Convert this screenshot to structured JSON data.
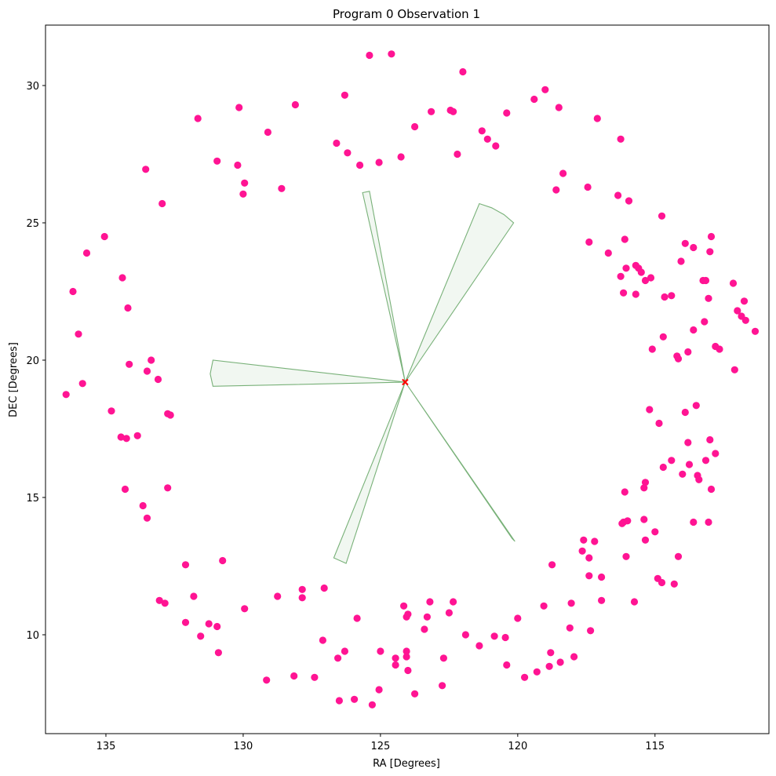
{
  "chart_data": {
    "type": "scatter",
    "title": "Program 0 Observation 1",
    "xlabel": "RA [Degrees]",
    "ylabel": "DEC [Degrees]",
    "xlim": [
      137.2,
      110.85
    ],
    "ylim": [
      6.4,
      32.2
    ],
    "x_ticks": [
      135,
      130,
      125,
      120,
      115
    ],
    "y_ticks": [
      10,
      15,
      20,
      25,
      30
    ],
    "grid": false,
    "colors": {
      "points": "#ff1493",
      "wedges": "#8fbc8f",
      "wedge_edge": "#6aa86a",
      "center_marker": "#ff0000"
    },
    "center": [
      124.1,
      19.2
    ],
    "wedges": [
      [
        [
          124.1,
          19.2
        ],
        [
          125.65,
          26.1
        ],
        [
          125.4,
          26.15
        ],
        [
          124.1,
          19.2
        ]
      ],
      [
        [
          124.1,
          19.2
        ],
        [
          121.4,
          25.7
        ],
        [
          120.95,
          25.55
        ],
        [
          120.5,
          25.3
        ],
        [
          120.15,
          25.0
        ],
        [
          124.1,
          19.2
        ]
      ],
      [
        [
          124.1,
          19.2
        ],
        [
          131.1,
          20.0
        ],
        [
          131.2,
          19.5
        ],
        [
          131.1,
          19.05
        ],
        [
          124.1,
          19.2
        ]
      ],
      [
        [
          124.1,
          19.2
        ],
        [
          126.7,
          12.8
        ],
        [
          126.25,
          12.6
        ],
        [
          124.1,
          19.2
        ]
      ],
      [
        [
          124.1,
          19.2
        ],
        [
          120.2,
          13.5
        ],
        [
          120.1,
          13.4
        ],
        [
          124.1,
          19.2
        ]
      ]
    ],
    "series": [
      {
        "points": [
          [
            125.4,
            31.1
          ],
          [
            124.6,
            31.15
          ],
          [
            122.0,
            30.5
          ],
          [
            119.0,
            29.85
          ],
          [
            119.4,
            29.5
          ],
          [
            118.5,
            29.2
          ],
          [
            117.1,
            28.8
          ],
          [
            120.4,
            29.0
          ],
          [
            123.15,
            29.05
          ],
          [
            122.45,
            29.1
          ],
          [
            122.35,
            29.05
          ],
          [
            123.75,
            28.5
          ],
          [
            121.3,
            28.35
          ],
          [
            121.1,
            28.05
          ],
          [
            120.8,
            27.8
          ],
          [
            116.25,
            28.05
          ],
          [
            126.6,
            27.9
          ],
          [
            126.2,
            27.55
          ],
          [
            125.05,
            27.2
          ],
          [
            124.25,
            27.4
          ],
          [
            125.75,
            27.1
          ],
          [
            122.2,
            27.5
          ],
          [
            118.35,
            26.8
          ],
          [
            118.6,
            26.2
          ],
          [
            117.45,
            26.3
          ],
          [
            116.35,
            26.0
          ],
          [
            115.95,
            25.8
          ],
          [
            114.75,
            25.25
          ],
          [
            112.95,
            24.5
          ],
          [
            113.6,
            24.1
          ],
          [
            113.9,
            24.25
          ],
          [
            116.1,
            24.4
          ],
          [
            117.4,
            24.3
          ],
          [
            116.7,
            23.9
          ],
          [
            114.05,
            23.6
          ],
          [
            113.0,
            23.95
          ],
          [
            116.05,
            23.35
          ],
          [
            115.6,
            23.35
          ],
          [
            115.7,
            23.45
          ],
          [
            115.5,
            23.2
          ],
          [
            116.25,
            23.05
          ],
          [
            115.15,
            23.0
          ],
          [
            115.35,
            22.9
          ],
          [
            113.25,
            22.9
          ],
          [
            113.15,
            22.9
          ],
          [
            112.15,
            22.8
          ],
          [
            116.15,
            22.45
          ],
          [
            115.7,
            22.4
          ],
          [
            114.65,
            22.3
          ],
          [
            114.4,
            22.35
          ],
          [
            113.05,
            22.25
          ],
          [
            111.75,
            22.15
          ],
          [
            112.0,
            21.8
          ],
          [
            111.85,
            21.6
          ],
          [
            111.7,
            21.45
          ],
          [
            113.2,
            21.4
          ],
          [
            113.6,
            21.1
          ],
          [
            114.7,
            20.85
          ],
          [
            111.35,
            21.05
          ],
          [
            115.1,
            20.4
          ],
          [
            112.8,
            20.5
          ],
          [
            112.65,
            20.4
          ],
          [
            114.2,
            20.15
          ],
          [
            114.15,
            20.05
          ],
          [
            113.8,
            20.3
          ],
          [
            112.1,
            19.65
          ],
          [
            113.5,
            18.35
          ],
          [
            113.9,
            18.1
          ],
          [
            115.2,
            18.2
          ],
          [
            114.85,
            17.7
          ],
          [
            113.0,
            17.1
          ],
          [
            113.8,
            17.0
          ],
          [
            112.8,
            16.6
          ],
          [
            114.4,
            16.35
          ],
          [
            113.75,
            16.2
          ],
          [
            113.15,
            16.35
          ],
          [
            114.7,
            16.1
          ],
          [
            113.45,
            15.8
          ],
          [
            114.0,
            15.85
          ],
          [
            113.4,
            15.65
          ],
          [
            115.35,
            15.55
          ],
          [
            115.4,
            15.35
          ],
          [
            112.95,
            15.3
          ],
          [
            116.1,
            15.2
          ],
          [
            115.4,
            14.2
          ],
          [
            116.0,
            14.15
          ],
          [
            116.15,
            14.1
          ],
          [
            116.2,
            14.05
          ],
          [
            113.6,
            14.1
          ],
          [
            113.05,
            14.1
          ],
          [
            115.0,
            13.75
          ],
          [
            115.35,
            13.45
          ],
          [
            117.6,
            13.45
          ],
          [
            117.2,
            13.4
          ],
          [
            117.65,
            13.05
          ],
          [
            117.4,
            12.8
          ],
          [
            116.05,
            12.85
          ],
          [
            114.15,
            12.85
          ],
          [
            118.75,
            12.55
          ],
          [
            114.9,
            12.05
          ],
          [
            114.75,
            11.9
          ],
          [
            114.3,
            11.85
          ],
          [
            117.4,
            12.15
          ],
          [
            116.95,
            12.1
          ],
          [
            116.95,
            11.25
          ],
          [
            115.75,
            11.2
          ],
          [
            118.05,
            11.15
          ],
          [
            119.05,
            11.05
          ],
          [
            122.35,
            11.2
          ],
          [
            123.2,
            11.2
          ],
          [
            122.5,
            10.8
          ],
          [
            124.0,
            10.75
          ],
          [
            124.05,
            10.65
          ],
          [
            123.3,
            10.65
          ],
          [
            124.15,
            11.05
          ],
          [
            121.9,
            10.0
          ],
          [
            121.4,
            9.6
          ],
          [
            123.4,
            10.2
          ],
          [
            120.0,
            10.6
          ],
          [
            118.1,
            10.25
          ],
          [
            120.85,
            9.95
          ],
          [
            120.45,
            9.9
          ],
          [
            117.35,
            10.15
          ],
          [
            118.8,
            9.35
          ],
          [
            119.3,
            8.65
          ],
          [
            118.85,
            8.85
          ],
          [
            118.45,
            9.0
          ],
          [
            117.95,
            9.2
          ],
          [
            120.4,
            8.9
          ],
          [
            119.75,
            8.45
          ],
          [
            122.7,
            9.15
          ],
          [
            124.45,
            9.15
          ],
          [
            124.05,
            9.2
          ],
          [
            124.05,
            9.4
          ],
          [
            124.45,
            8.9
          ],
          [
            124.0,
            8.7
          ],
          [
            125.0,
            9.4
          ],
          [
            126.3,
            9.4
          ],
          [
            126.55,
            9.15
          ],
          [
            127.1,
            9.8
          ],
          [
            125.85,
            10.6
          ],
          [
            122.75,
            8.15
          ],
          [
            123.75,
            7.85
          ],
          [
            125.05,
            8.0
          ],
          [
            125.95,
            7.65
          ],
          [
            126.5,
            7.6
          ],
          [
            125.3,
            7.45
          ],
          [
            128.15,
            8.5
          ],
          [
            127.4,
            8.45
          ],
          [
            129.15,
            8.35
          ],
          [
            127.05,
            11.7
          ],
          [
            127.85,
            11.35
          ],
          [
            127.85,
            11.65
          ],
          [
            128.75,
            11.4
          ],
          [
            129.95,
            10.95
          ],
          [
            130.75,
            12.7
          ],
          [
            131.8,
            11.4
          ],
          [
            132.1,
            12.55
          ],
          [
            132.1,
            10.45
          ],
          [
            133.05,
            11.25
          ],
          [
            132.85,
            11.15
          ],
          [
            131.25,
            10.4
          ],
          [
            130.95,
            10.3
          ],
          [
            131.55,
            9.95
          ],
          [
            130.9,
            9.35
          ],
          [
            133.65,
            14.7
          ],
          [
            133.5,
            14.25
          ],
          [
            132.75,
            15.35
          ],
          [
            134.3,
            15.3
          ],
          [
            134.45,
            17.2
          ],
          [
            134.25,
            17.15
          ],
          [
            133.85,
            17.25
          ],
          [
            132.75,
            18.05
          ],
          [
            132.65,
            18.0
          ],
          [
            134.8,
            18.15
          ],
          [
            133.5,
            19.6
          ],
          [
            133.1,
            19.3
          ],
          [
            133.35,
            20.0
          ],
          [
            134.15,
            19.85
          ],
          [
            135.85,
            19.15
          ],
          [
            136.45,
            18.75
          ],
          [
            136.0,
            20.95
          ],
          [
            136.2,
            22.5
          ],
          [
            134.4,
            23.0
          ],
          [
            134.2,
            21.9
          ],
          [
            135.7,
            23.9
          ],
          [
            135.05,
            24.5
          ],
          [
            133.55,
            26.95
          ],
          [
            132.95,
            25.7
          ],
          [
            131.65,
            28.8
          ],
          [
            130.95,
            27.25
          ],
          [
            130.15,
            29.2
          ],
          [
            130.2,
            27.1
          ],
          [
            129.95,
            26.45
          ],
          [
            130.0,
            26.05
          ],
          [
            129.1,
            28.3
          ],
          [
            128.1,
            29.3
          ],
          [
            128.6,
            26.25
          ],
          [
            126.3,
            29.65
          ]
        ]
      }
    ]
  }
}
